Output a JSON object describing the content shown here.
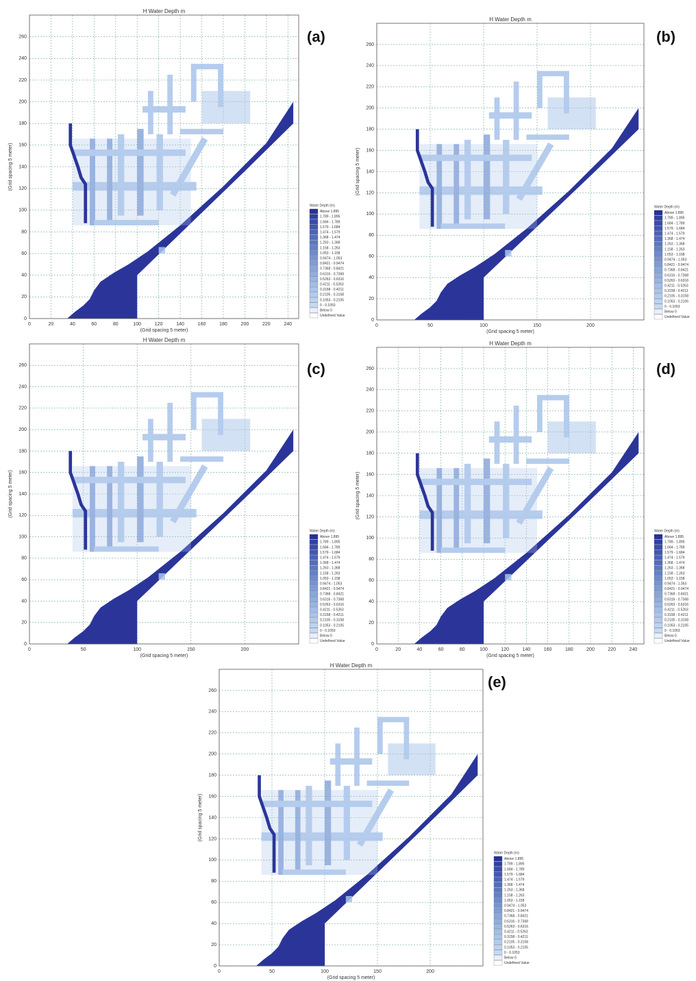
{
  "title": "H Water Depth m",
  "x_label": "(Grid spacing 5 meter)",
  "y_label": "(Grid spacing 5 meter)",
  "legend": {
    "title": "Water Depth (m)",
    "entries": [
      {
        "label": "Above 1.895",
        "color": "#27309a"
      },
      {
        "label": "1.789 - 1.895",
        "color": "#3040a4"
      },
      {
        "label": "1.684 - 1.789",
        "color": "#3a4cac"
      },
      {
        "label": "1.579 - 1.684",
        "color": "#4257b2"
      },
      {
        "label": "1.474 - 1.579",
        "color": "#4b62b8"
      },
      {
        "label": "1.368 - 1.474",
        "color": "#546dbd"
      },
      {
        "label": "1.263 - 1.368",
        "color": "#5c77c2"
      },
      {
        "label": "1.158 - 1.263",
        "color": "#6581c7"
      },
      {
        "label": "1.053 - 1.158",
        "color": "#6e8bcc"
      },
      {
        "label": "0.9474 - 1.053",
        "color": "#7794d1"
      },
      {
        "label": "0.8421 - 0.9474",
        "color": "#7f9dd5"
      },
      {
        "label": "0.7368 - 0.8421",
        "color": "#88a6d9"
      },
      {
        "label": "0.6316 - 0.7368",
        "color": "#91aedd"
      },
      {
        "label": "0.5263 - 0.6316",
        "color": "#9ab6e1"
      },
      {
        "label": "0.4211 - 0.5263",
        "color": "#a3bee5"
      },
      {
        "label": "0.3158 - 0.4211",
        "color": "#abc5e8"
      },
      {
        "label": "0.2105 - 0.3158",
        "color": "#b3cceb"
      },
      {
        "label": "0.1053 - 0.2105",
        "color": "#bcd3ee"
      },
      {
        "label": "0 - 0.1053",
        "color": "#c5daf1"
      },
      {
        "label": "Below 0",
        "color": "#e8f0fb"
      },
      {
        "label": "Undefined Value",
        "color": "#ffffff"
      }
    ]
  },
  "panels": [
    {
      "label": "(a)",
      "xlim": [
        0,
        250
      ],
      "ylim": [
        0,
        280
      ],
      "xticks": [
        0,
        20,
        40,
        60,
        80,
        100,
        120,
        140,
        160,
        180,
        200,
        220,
        240
      ],
      "yticks": [
        0,
        20,
        40,
        60,
        80,
        100,
        120,
        140,
        160,
        180,
        200,
        220,
        240,
        260
      ]
    },
    {
      "label": "(b)",
      "xlim": [
        0,
        250
      ],
      "ylim": [
        0,
        280
      ],
      "xticks": [
        0,
        50,
        100,
        150,
        200
      ],
      "yticks": [
        0,
        20,
        40,
        60,
        80,
        100,
        120,
        140,
        160,
        180,
        200,
        220,
        240,
        260
      ]
    },
    {
      "label": "(c)",
      "xlim": [
        0,
        250
      ],
      "ylim": [
        0,
        280
      ],
      "xticks": [
        0,
        50,
        100,
        150,
        200
      ],
      "yticks": [
        0,
        20,
        40,
        60,
        80,
        100,
        120,
        140,
        160,
        180,
        200,
        220,
        240,
        260
      ]
    },
    {
      "label": "(d)",
      "xlim": [
        0,
        250
      ],
      "ylim": [
        0,
        280
      ],
      "xticks": [
        0,
        20,
        40,
        60,
        80,
        100,
        120,
        140,
        160,
        180,
        200,
        220,
        240
      ],
      "yticks": [
        0,
        20,
        40,
        60,
        80,
        100,
        120,
        140,
        160,
        180,
        200,
        220,
        240,
        260
      ]
    },
    {
      "label": "(e)",
      "xlim": [
        0,
        250
      ],
      "ylim": [
        0,
        280
      ],
      "xticks": [
        0,
        50,
        100,
        150,
        200
      ],
      "yticks": [
        0,
        20,
        40,
        60,
        80,
        100,
        120,
        140,
        160,
        180,
        200,
        220,
        240,
        260
      ]
    }
  ]
}
